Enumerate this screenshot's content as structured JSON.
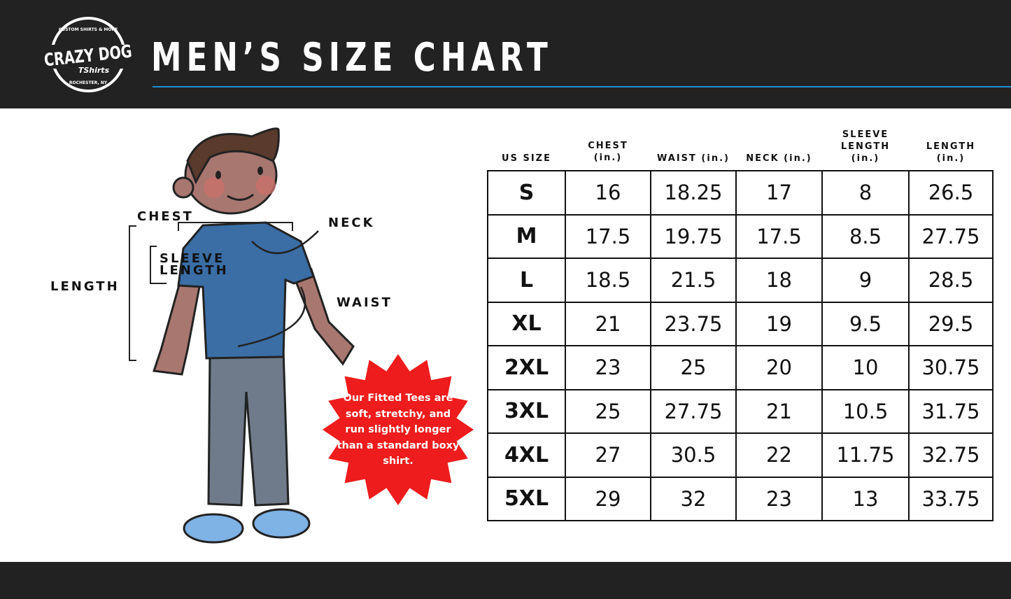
{
  "header": {
    "logo": {
      "text_main": "CRAZY DOG",
      "text_sub": "TShirts",
      "text_top": "CUSTOM SHIRTS & MORE",
      "text_bottom": "ROCHESTER, NY"
    },
    "title": "MEN’S SIZE CHART"
  },
  "figure": {
    "labels": {
      "chest": "CHEST",
      "neck": "NECK",
      "sleeve_1": "SLEEVE",
      "sleeve_2": "LENGTH",
      "length": "LENGTH",
      "waist": "WAIST"
    },
    "badge": {
      "text": "Our Fitted Tees are soft, stretchy, and run slightly longer than a standard boxy shirt.",
      "color": "#ee1c1c"
    }
  },
  "table": {
    "headers": [
      [
        "US SIZE"
      ],
      [
        "CHEST",
        "(in.)"
      ],
      [
        "WAIST (in.)"
      ],
      [
        "NECK (in.)"
      ],
      [
        "SLEEVE",
        "LENGTH",
        "(in.)"
      ],
      [
        "LENGTH",
        "(in.)"
      ]
    ],
    "rows": [
      [
        "S",
        "16",
        "18.25",
        "17",
        "8",
        "26.5"
      ],
      [
        "M",
        "17.5",
        "19.75",
        "17.5",
        "8.5",
        "27.75"
      ],
      [
        "L",
        "18.5",
        "21.5",
        "18",
        "9",
        "28.5"
      ],
      [
        "XL",
        "21",
        "23.75",
        "19",
        "9.5",
        "29.5"
      ],
      [
        "2XL",
        "23",
        "25",
        "20",
        "10",
        "30.75"
      ],
      [
        "3XL",
        "25",
        "27.75",
        "21",
        "10.5",
        "31.75"
      ],
      [
        "4XL",
        "27",
        "30.5",
        "22",
        "11.75",
        "32.75"
      ],
      [
        "5XL",
        "29",
        "32",
        "23",
        "13",
        "33.75"
      ]
    ]
  },
  "colors": {
    "header_bg": "#222222",
    "accent_rule": "#1e8fd6",
    "shirt": "#3a6ea5"
  }
}
